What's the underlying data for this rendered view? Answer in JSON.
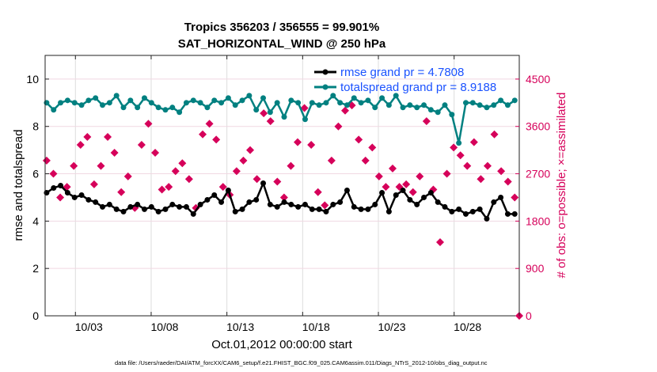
{
  "chart_data": {
    "type": "line",
    "title": "Tropics 356203 / 356555 = 99.901%",
    "subtitle": "SAT_HORIZONTAL_WIND @ 250 hPa",
    "xlabel": "Oct.01,2012 00:00:00 start",
    "ylabel": "rmse and totalspread",
    "ylabel_right": "# of obs: o=possible; ×=assimilated",
    "ylim": [
      0,
      11
    ],
    "ylim_right": [
      0,
      4950
    ],
    "xlim_days": [
      0,
      31.3
    ],
    "x_ticks": [
      {
        "day": 2,
        "label": "10/03"
      },
      {
        "day": 7,
        "label": "10/08"
      },
      {
        "day": 12,
        "label": "10/13"
      },
      {
        "day": 17,
        "label": "10/18"
      },
      {
        "day": 22,
        "label": "10/23"
      },
      {
        "day": 27,
        "label": "10/28"
      }
    ],
    "y_ticks": [
      "0",
      "2",
      "4",
      "6",
      "8",
      "10"
    ],
    "y_ticks_right": [
      "0",
      "900",
      "1800",
      "2700",
      "3600",
      "4500"
    ],
    "grid": true,
    "legend_position": "top-right",
    "series": [
      {
        "name": "rmse grand pr = 4.7808",
        "color": "#000000",
        "values": [
          5.2,
          5.4,
          5.5,
          5.2,
          5.0,
          5.1,
          4.9,
          4.8,
          4.6,
          4.7,
          4.5,
          4.4,
          4.6,
          4.7,
          4.5,
          4.6,
          4.4,
          4.5,
          4.7,
          4.6,
          4.6,
          4.3,
          4.7,
          4.9,
          5.1,
          4.8,
          5.3,
          4.4,
          4.5,
          4.8,
          4.9,
          5.6,
          4.7,
          4.6,
          4.8,
          4.7,
          4.6,
          4.7,
          4.5,
          4.5,
          4.4,
          4.7,
          4.8,
          5.3,
          4.6,
          4.5,
          4.5,
          4.7,
          5.2,
          4.4,
          5.1,
          5.3,
          4.9,
          4.7,
          5.0,
          5.2,
          4.8,
          4.6,
          4.4,
          4.5,
          4.3,
          4.4,
          4.5,
          4.1,
          4.8,
          5.0,
          4.3,
          4.3
        ]
      },
      {
        "name": "totalspread grand pr = 8.9188",
        "color": "#008080",
        "values": [
          9.0,
          8.7,
          9.0,
          9.1,
          9.0,
          8.9,
          9.1,
          9.2,
          8.9,
          9.0,
          9.3,
          8.8,
          9.1,
          8.8,
          9.2,
          9.0,
          8.8,
          8.7,
          8.8,
          8.6,
          9.0,
          9.1,
          9.0,
          8.8,
          9.1,
          9.0,
          9.2,
          8.9,
          9.1,
          9.3,
          8.7,
          9.2,
          8.6,
          9.0,
          8.4,
          9.1,
          9.0,
          8.3,
          9.0,
          8.9,
          9.0,
          9.3,
          9.0,
          8.9,
          9.2,
          9.0,
          9.1,
          8.8,
          9.2,
          8.9,
          9.3,
          8.8,
          8.9,
          8.8,
          8.9,
          8.7,
          8.6,
          8.9,
          8.5,
          7.3,
          9.0,
          9.0,
          8.9,
          8.8,
          8.9,
          9.1,
          8.9,
          9.1
        ]
      },
      {
        "name": "obs assimilated",
        "color": "#d6005a",
        "axis": "right",
        "values": [
          2950,
          2700,
          2250,
          2450,
          2850,
          3250,
          3400,
          2500,
          2850,
          3400,
          3100,
          2350,
          2650,
          2050,
          3250,
          3650,
          3100,
          2400,
          2450,
          2750,
          2900,
          2600,
          2050,
          3450,
          3650,
          3350,
          2450,
          2300,
          2750,
          2950,
          3150,
          2600,
          3850,
          3700,
          2550,
          2250,
          2850,
          3300,
          3950,
          3250,
          2350,
          2100,
          2950,
          3600,
          3900,
          4000,
          3350,
          2950,
          3200,
          2650,
          2450,
          2800,
          2450,
          2500,
          2350,
          2650,
          3700,
          2400,
          1400,
          2700,
          3200,
          3050,
          2850,
          3300,
          2600,
          2850,
          3450,
          2750,
          2550,
          2250,
          0
        ]
      }
    ],
    "footer": "data file: /Users/raeder/DAI/ATM_forcXX/CAM6_setup/f.e21.FHIST_BGC.f09_025.CAM6assim.011/Diags_NTrS_2012-10/obs_diag_output.nc"
  }
}
